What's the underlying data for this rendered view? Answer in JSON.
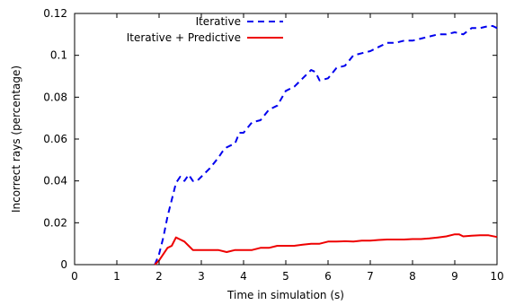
{
  "chart_data": {
    "type": "line",
    "title": "",
    "xlabel": "Time in simulation (s)",
    "ylabel": "Incorrect rays (percentage)",
    "xlim": [
      0,
      10
    ],
    "ylim": [
      0,
      0.12
    ],
    "x_ticks": [
      0,
      1,
      2,
      3,
      4,
      5,
      6,
      7,
      8,
      9,
      10
    ],
    "x_tick_labels": [
      "0",
      "1",
      "2",
      "3",
      "4",
      "5",
      "6",
      "7",
      "8",
      "9",
      "10"
    ],
    "y_ticks": [
      0,
      0.02,
      0.04,
      0.06,
      0.08,
      0.1,
      0.12
    ],
    "y_tick_labels": [
      "0",
      "0.02",
      "0.04",
      "0.06",
      "0.08",
      "0.1",
      "0.12"
    ],
    "grid": false,
    "legend_position": "top-right",
    "series": [
      {
        "name": "Iterative",
        "color": "#0000ee",
        "dash": "dashed",
        "x": [
          1.9,
          2.0,
          2.1,
          2.2,
          2.3,
          2.4,
          2.5,
          2.6,
          2.7,
          2.8,
          2.9,
          3.0,
          3.2,
          3.4,
          3.5,
          3.6,
          3.8,
          3.9,
          4.0,
          4.2,
          4.4,
          4.6,
          4.8,
          5.0,
          5.2,
          5.4,
          5.6,
          5.7,
          5.8,
          6.0,
          6.2,
          6.4,
          6.6,
          6.8,
          7.0,
          7.2,
          7.4,
          7.6,
          7.8,
          8.0,
          8.2,
          8.4,
          8.6,
          8.8,
          9.0,
          9.2,
          9.4,
          9.6,
          9.8,
          9.9,
          10.0
        ],
        "y": [
          0.0,
          0.005,
          0.013,
          0.023,
          0.031,
          0.039,
          0.042,
          0.04,
          0.043,
          0.04,
          0.04,
          0.042,
          0.046,
          0.051,
          0.054,
          0.056,
          0.058,
          0.063,
          0.063,
          0.068,
          0.069,
          0.074,
          0.076,
          0.083,
          0.085,
          0.089,
          0.093,
          0.092,
          0.088,
          0.089,
          0.094,
          0.095,
          0.1,
          0.101,
          0.102,
          0.104,
          0.106,
          0.106,
          0.107,
          0.107,
          0.108,
          0.109,
          0.11,
          0.11,
          0.111,
          0.11,
          0.113,
          0.113,
          0.114,
          0.114,
          0.113
        ]
      },
      {
        "name": "Iterative + Predictive",
        "color": "#ee0000",
        "dash": "solid",
        "x": [
          1.9,
          2.0,
          2.1,
          2.2,
          2.3,
          2.4,
          2.5,
          2.6,
          2.7,
          2.8,
          3.0,
          3.2,
          3.4,
          3.6,
          3.8,
          4.0,
          4.2,
          4.4,
          4.6,
          4.8,
          5.0,
          5.2,
          5.4,
          5.6,
          5.8,
          6.0,
          6.2,
          6.4,
          6.6,
          6.8,
          7.0,
          7.2,
          7.4,
          7.6,
          7.8,
          8.0,
          8.2,
          8.4,
          8.6,
          8.8,
          9.0,
          9.1,
          9.2,
          9.4,
          9.6,
          9.8,
          10.0
        ],
        "y": [
          0.0,
          0.002,
          0.005,
          0.008,
          0.009,
          0.013,
          0.012,
          0.011,
          0.009,
          0.007,
          0.007,
          0.007,
          0.007,
          0.006,
          0.007,
          0.007,
          0.007,
          0.008,
          0.008,
          0.009,
          0.009,
          0.009,
          0.0095,
          0.01,
          0.01,
          0.011,
          0.011,
          0.0112,
          0.011,
          0.0115,
          0.0115,
          0.0118,
          0.012,
          0.012,
          0.012,
          0.0122,
          0.0122,
          0.0125,
          0.013,
          0.0135,
          0.0145,
          0.0145,
          0.0135,
          0.0138,
          0.014,
          0.014,
          0.0132
        ]
      }
    ]
  }
}
